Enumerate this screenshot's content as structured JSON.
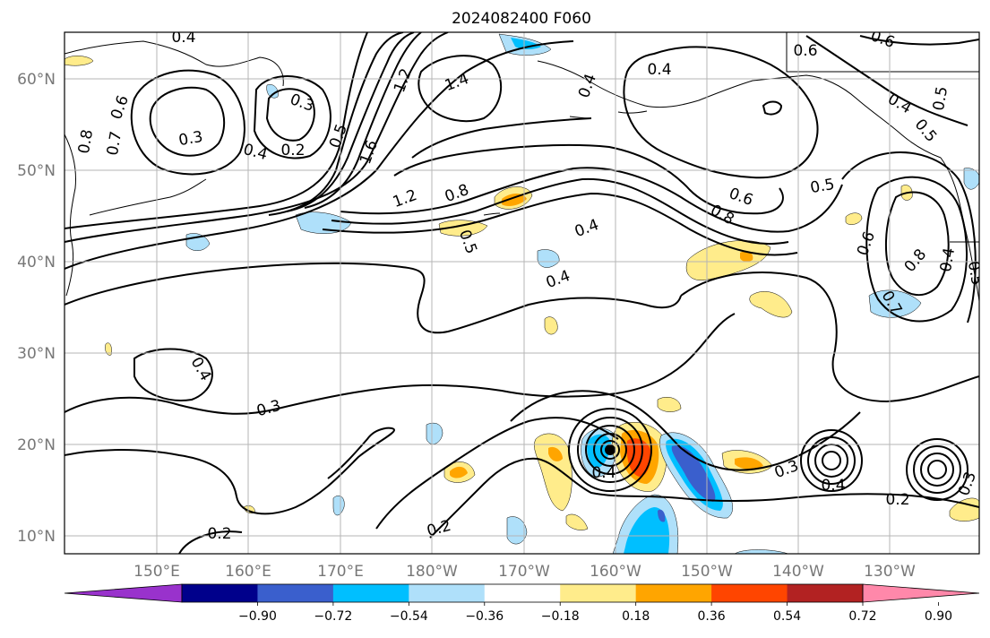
{
  "title": "2024082400 F060",
  "map": {
    "lat_labels": [
      "60°N",
      "50°N",
      "40°N",
      "30°N",
      "20°N",
      "10°N"
    ],
    "lon_labels": [
      "150°E",
      "160°E",
      "170°E",
      "180°W",
      "170°W",
      "160°W",
      "150°W",
      "140°W",
      "130°W"
    ],
    "label_color": "#777777",
    "grid_color": "#b5b5b5",
    "contour_labels": [
      "0.4",
      "0.6",
      "0.7",
      "0.8",
      "0.3",
      "0.3",
      "0.2",
      "0.4",
      "0.5",
      "1.2",
      "1.4",
      "1.6",
      "1.2",
      "0.8",
      "0.4",
      "0.5",
      "0.4",
      "0.4",
      "0.6",
      "0.8",
      "0.6",
      "0.5",
      "0.6",
      "0.5",
      "0.4",
      "0.5",
      "0.4",
      "0.6",
      "0.8",
      "0.5",
      "0.7",
      "0.4",
      "0.3",
      "0.4",
      "0.4",
      "0.3",
      "0.4",
      "0.2",
      "0.2",
      "0.2",
      "0.3"
    ]
  },
  "colorbar": {
    "ticks": [
      "−0.90",
      "−0.72",
      "−0.54",
      "−0.36",
      "−0.18",
      "0.18",
      "0.36",
      "0.54",
      "0.72",
      "0.90"
    ],
    "colors": [
      "#9932cc",
      "#00008b",
      "#3a5fcd",
      "#00bfff",
      "#afe0fa",
      "#ffffff",
      "#ffec8b",
      "#ffa500",
      "#ff4500",
      "#b22222",
      "#ff88aa"
    ]
  }
}
